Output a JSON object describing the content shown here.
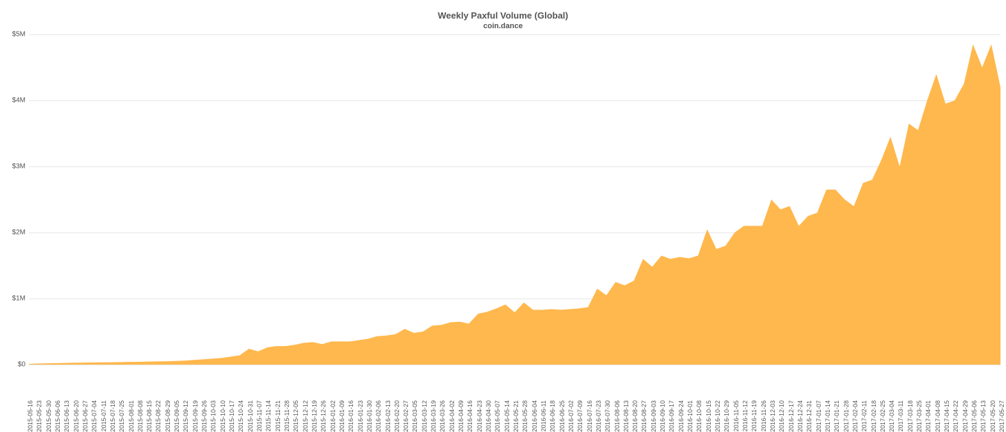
{
  "chart": {
    "type": "area",
    "title": "Weekly Paxful Volume (Global)",
    "subtitle": "coin.dance",
    "title_fontsize": 13,
    "subtitle_fontsize": 11,
    "title_color": "#555555",
    "background_color": "#ffffff",
    "grid_color": "#e6e6e6",
    "fill_color": "#ffb84d",
    "fill_opacity": 1.0,
    "line_color": "#ffb84d",
    "line_width": 0,
    "label_fontsize": 10,
    "xlabel_fontsize": 9,
    "ylim": [
      0,
      5000000
    ],
    "ytick_step": 1000000,
    "yticks": [
      "$0",
      "$1M",
      "$2M",
      "$3M",
      "$4M",
      "$5M"
    ],
    "categories": [
      "2015-05-16",
      "2015-05-23",
      "2015-05-30",
      "2015-06-06",
      "2015-06-13",
      "2015-06-20",
      "2015-06-27",
      "2015-07-04",
      "2015-07-11",
      "2015-07-18",
      "2015-07-25",
      "2015-08-01",
      "2015-08-08",
      "2015-08-15",
      "2015-08-22",
      "2015-08-29",
      "2015-09-05",
      "2015-09-12",
      "2015-09-19",
      "2015-09-26",
      "2015-10-03",
      "2015-10-10",
      "2015-10-17",
      "2015-10-24",
      "2015-10-31",
      "2015-11-07",
      "2015-11-14",
      "2015-11-21",
      "2015-11-28",
      "2015-12-05",
      "2015-12-12",
      "2015-12-19",
      "2015-12-26",
      "2016-01-02",
      "2016-01-09",
      "2016-01-16",
      "2016-01-23",
      "2016-01-30",
      "2016-02-06",
      "2016-02-13",
      "2016-02-20",
      "2016-02-27",
      "2016-03-05",
      "2016-03-12",
      "2016-03-19",
      "2016-03-26",
      "2016-04-02",
      "2016-04-09",
      "2016-04-16",
      "2016-04-23",
      "2016-04-30",
      "2016-05-07",
      "2016-05-14",
      "2016-05-21",
      "2016-05-28",
      "2016-06-04",
      "2016-06-11",
      "2016-06-18",
      "2016-06-25",
      "2016-07-02",
      "2016-07-09",
      "2016-07-16",
      "2016-07-23",
      "2016-07-30",
      "2016-08-06",
      "2016-08-13",
      "2016-08-20",
      "2016-08-27",
      "2016-09-03",
      "2016-09-10",
      "2016-09-17",
      "2016-09-24",
      "2016-10-01",
      "2016-10-08",
      "2016-10-15",
      "2016-10-22",
      "2016-10-29",
      "2016-11-05",
      "2016-11-12",
      "2016-11-19",
      "2016-11-26",
      "2016-12-03",
      "2016-12-10",
      "2016-12-17",
      "2016-12-24",
      "2016-12-31",
      "2017-01-07",
      "2017-01-14",
      "2017-01-21",
      "2017-01-28",
      "2017-02-04",
      "2017-02-11",
      "2017-02-18",
      "2017-02-25",
      "2017-03-04",
      "2017-03-11",
      "2017-03-18",
      "2017-03-25",
      "2017-04-01",
      "2017-04-08",
      "2017-04-15",
      "2017-04-22",
      "2017-04-29",
      "2017-05-06",
      "2017-05-13",
      "2017-05-20",
      "2017-05-27"
    ],
    "values": [
      10000,
      15000,
      20000,
      22000,
      25000,
      28000,
      30000,
      32000,
      34000,
      35000,
      38000,
      40000,
      42000,
      45000,
      48000,
      50000,
      55000,
      60000,
      70000,
      80000,
      90000,
      100000,
      120000,
      140000,
      240000,
      200000,
      260000,
      280000,
      280000,
      300000,
      330000,
      340000,
      310000,
      350000,
      350000,
      350000,
      370000,
      390000,
      430000,
      440000,
      460000,
      540000,
      480000,
      500000,
      590000,
      600000,
      640000,
      650000,
      620000,
      770000,
      800000,
      850000,
      910000,
      790000,
      940000,
      830000,
      830000,
      840000,
      830000,
      840000,
      850000,
      870000,
      1150000,
      1050000,
      1250000,
      1200000,
      1270000,
      1600000,
      1480000,
      1650000,
      1600000,
      1630000,
      1610000,
      1650000,
      2050000,
      1750000,
      1800000,
      2000000,
      2100000,
      2100000,
      2100000,
      2500000,
      2350000,
      2400000,
      2100000,
      2250000,
      2300000,
      2650000,
      2650000,
      2500000,
      2400000,
      2750000,
      2800000,
      3100000,
      3450000,
      3000000,
      3650000,
      3550000,
      4000000,
      4400000,
      3950000,
      4000000,
      4250000,
      4850000,
      4500000,
      4850000,
      4200000
    ]
  }
}
